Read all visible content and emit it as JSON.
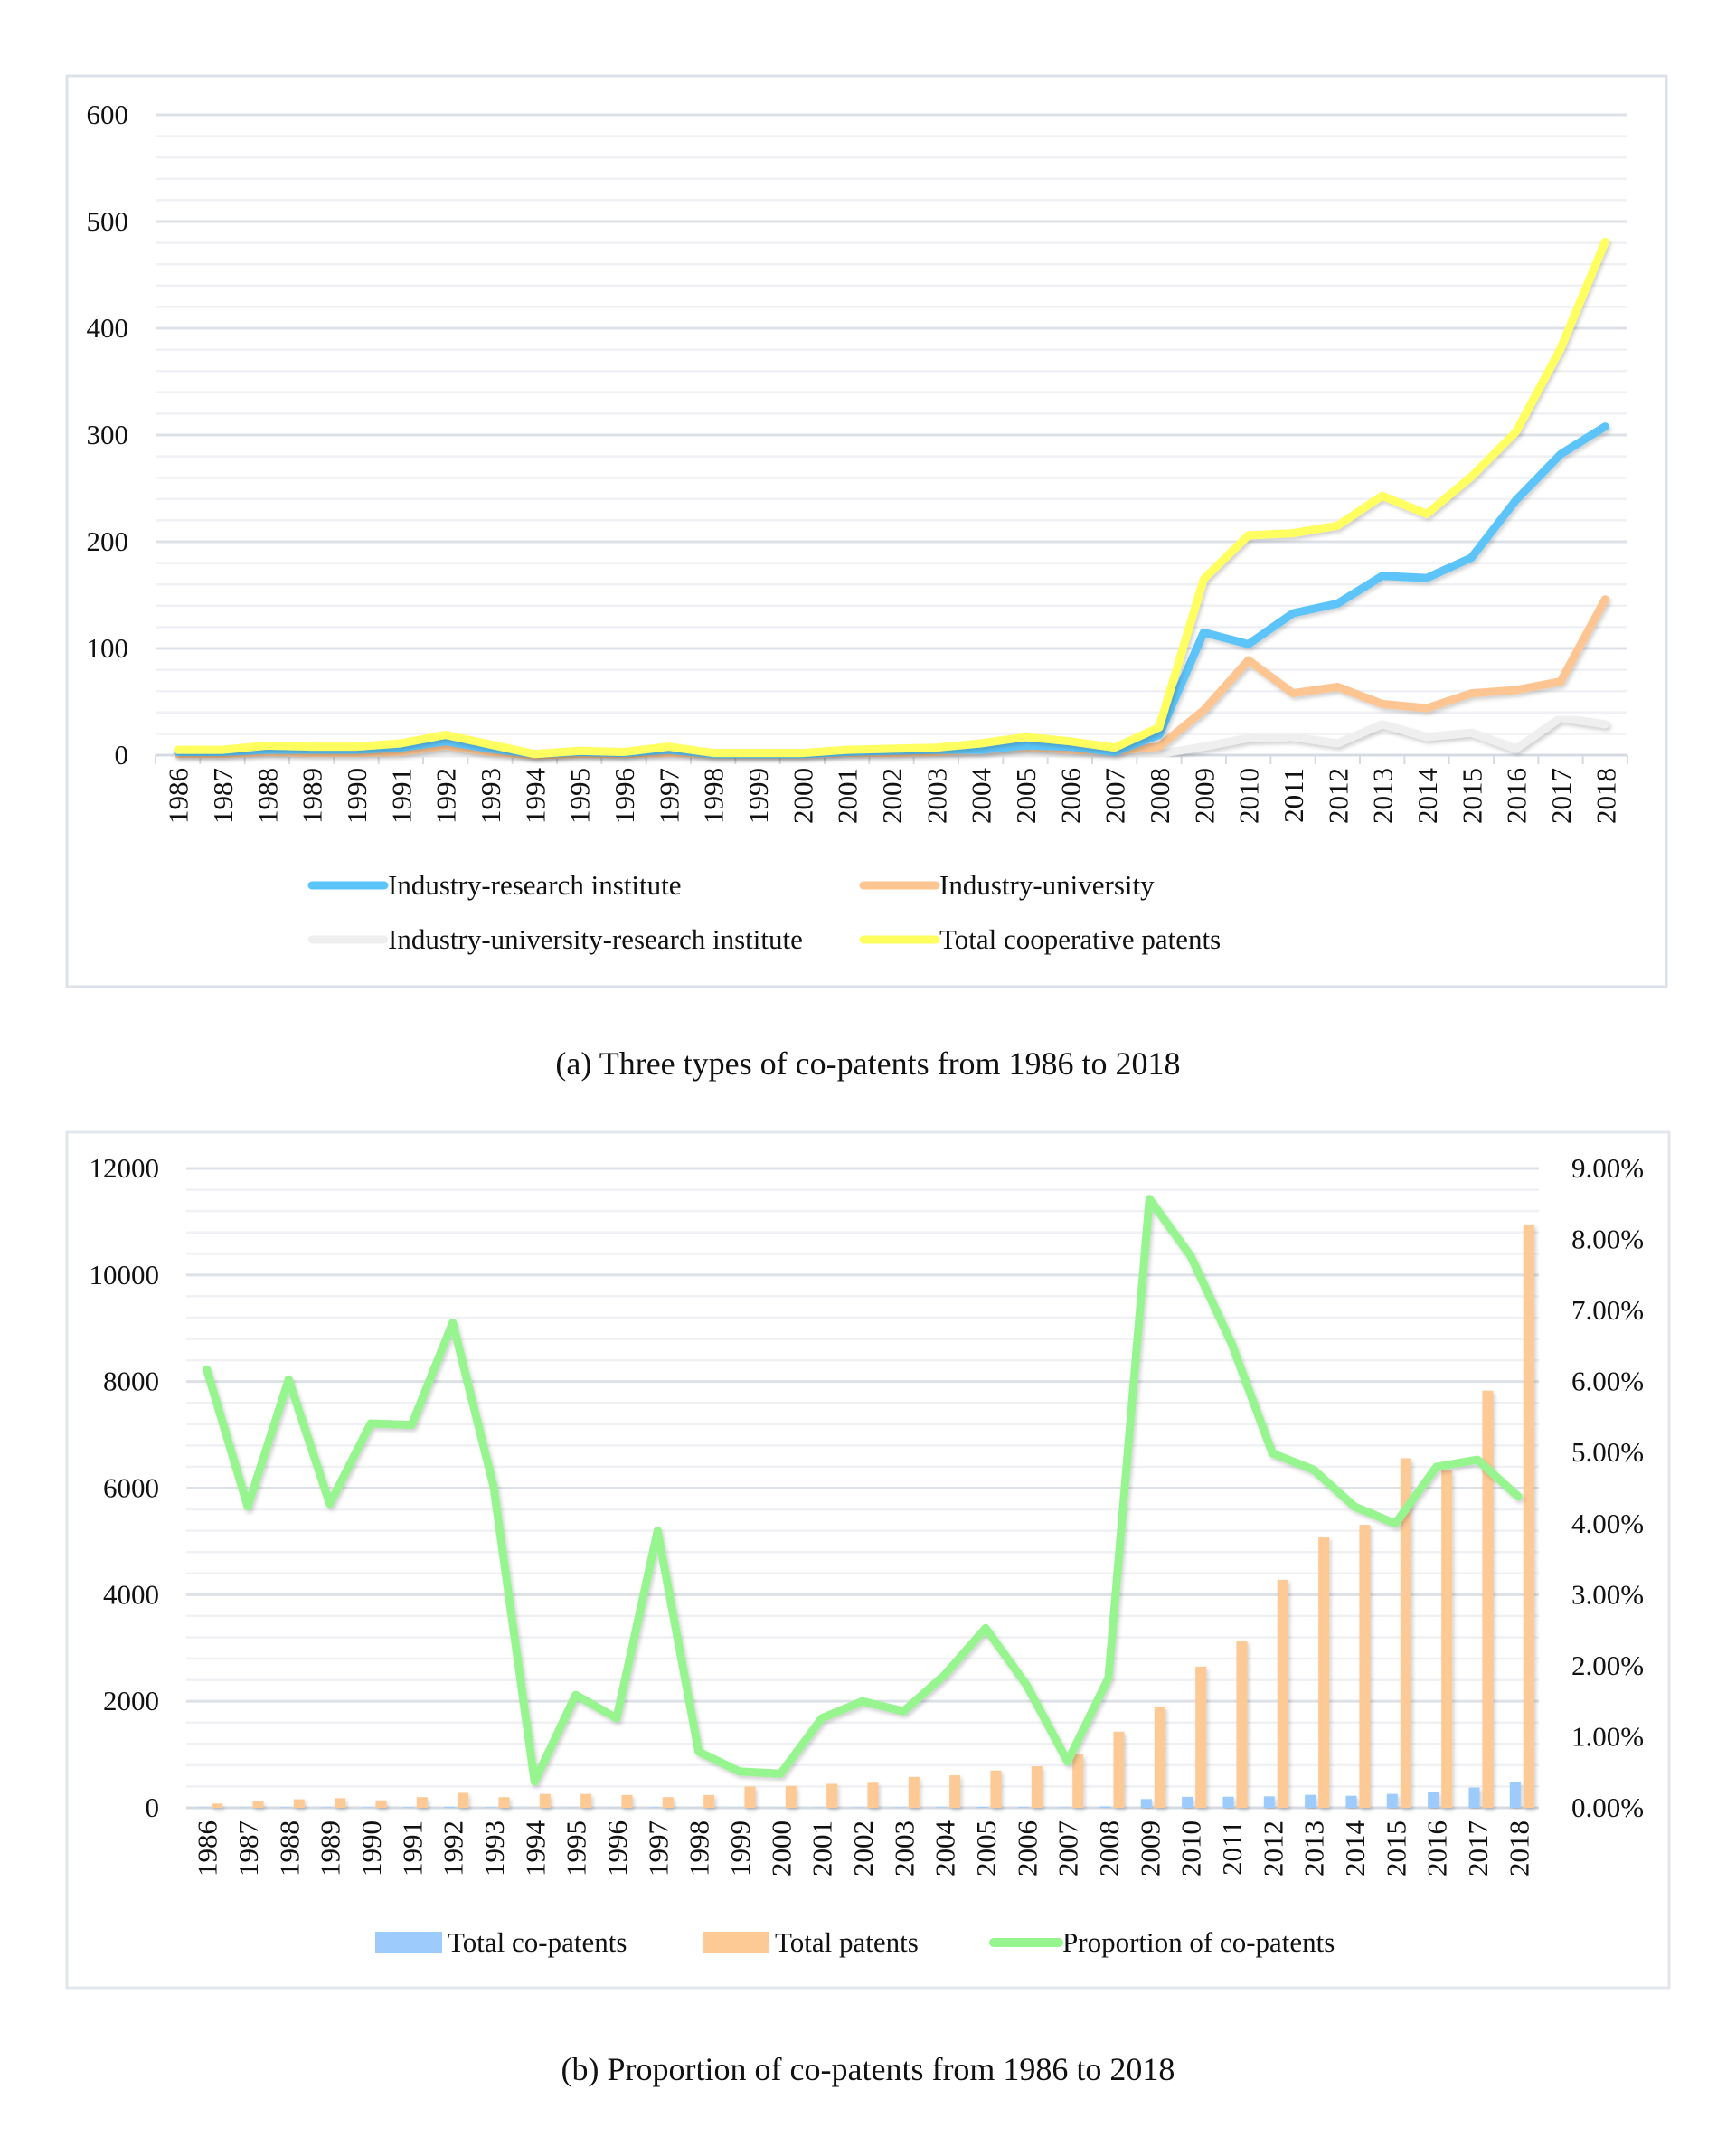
{
  "chart_data": [
    {
      "id": "a",
      "type": "line",
      "title": "",
      "caption": "(a) Three types of co-patents from 1986 to 2018",
      "xlabel": "",
      "ylabel": "",
      "ylim": [
        0,
        600
      ],
      "yticks": [
        0,
        100,
        200,
        300,
        400,
        500,
        600
      ],
      "ytick_labels": [
        "0",
        "100",
        "200",
        "300",
        "400",
        "500",
        "600"
      ],
      "grid": true,
      "legend_position": "bottom",
      "x": [
        "1986",
        "1987",
        "1988",
        "1989",
        "1990",
        "1991",
        "1992",
        "1993",
        "1994",
        "1995",
        "1996",
        "1997",
        "1998",
        "1999",
        "2000",
        "2001",
        "2002",
        "2003",
        "2004",
        "2005",
        "2006",
        "2007",
        "2008",
        "2009",
        "2010",
        "2011",
        "2012",
        "2013",
        "2014",
        "2015",
        "2016",
        "2017",
        "2018"
      ],
      "series": [
        {
          "name": "Industry-research institute",
          "color": "#5bc4f8",
          "values": [
            3,
            3,
            5,
            5,
            5,
            7,
            13,
            6,
            1,
            3,
            2,
            5,
            1,
            1,
            1,
            3,
            4,
            5,
            5,
            9,
            8,
            3,
            19,
            115,
            104,
            133,
            142,
            168,
            166,
            185,
            239,
            282,
            308
          ]
        },
        {
          "name": "Industry-university",
          "color": "#fdc591",
          "values": [
            1,
            1,
            3,
            2,
            2,
            3,
            9,
            3,
            0,
            1,
            1,
            2,
            1,
            1,
            1,
            2,
            2,
            3,
            5,
            8,
            5,
            4,
            8,
            42,
            89,
            58,
            64,
            48,
            44,
            58,
            61,
            69,
            146
          ]
        },
        {
          "name": "Industry-university-research institute",
          "color": "#efefef",
          "values": [
            0,
            0,
            0,
            0,
            0,
            0,
            1,
            0,
            0,
            0,
            0,
            1,
            0,
            0,
            0,
            0,
            0,
            0,
            1,
            2,
            1,
            0,
            1,
            8,
            16,
            17,
            11,
            29,
            17,
            21,
            6,
            35,
            29
          ]
        },
        {
          "name": "Total cooperative patents",
          "color": "#ffff5e",
          "values": [
            5,
            5,
            9,
            8,
            8,
            11,
            19,
            10,
            1,
            4,
            3,
            8,
            2,
            2,
            2,
            5,
            6,
            7,
            11,
            17,
            13,
            7,
            26,
            165,
            206,
            208,
            215,
            243,
            226,
            261,
            303,
            381,
            481
          ]
        }
      ]
    },
    {
      "id": "b",
      "type": "bar",
      "title": "",
      "caption": "(b) Proportion of co-patents from 1986 to 2018",
      "xlabel": "",
      "ylabel": "",
      "ylim": [
        0,
        12000
      ],
      "yticks": [
        0,
        2000,
        4000,
        6000,
        8000,
        10000,
        12000
      ],
      "ytick_labels": [
        "0",
        "2000",
        "4000",
        "6000",
        "8000",
        "10000",
        "12000"
      ],
      "y2lim": [
        0,
        9
      ],
      "y2ticks": [
        0,
        1,
        2,
        3,
        4,
        5,
        6,
        7,
        8,
        9
      ],
      "y2tick_labels": [
        "0.00%",
        "1.00%",
        "2.00%",
        "3.00%",
        "4.00%",
        "5.00%",
        "6.00%",
        "7.00%",
        "8.00%",
        "9.00%"
      ],
      "grid": true,
      "legend_position": "bottom",
      "x": [
        "1986",
        "1987",
        "1988",
        "1989",
        "1990",
        "1991",
        "1992",
        "1993",
        "1994",
        "1995",
        "1996",
        "1997",
        "1998",
        "1999",
        "2000",
        "2001",
        "2002",
        "2003",
        "2004",
        "2005",
        "2006",
        "2007",
        "2008",
        "2009",
        "2010",
        "2011",
        "2012",
        "2013",
        "2014",
        "2015",
        "2016",
        "2017",
        "2018"
      ],
      "series": [
        {
          "name": "Total co-patents",
          "type": "bar",
          "axis": "left",
          "color": "#9dcbfb",
          "values": [
            5,
            5,
            9,
            8,
            8,
            11,
            19,
            10,
            1,
            4,
            3,
            8,
            2,
            2,
            2,
            5,
            6,
            7,
            11,
            17,
            13,
            7,
            26,
            165,
            206,
            208,
            215,
            243,
            226,
            261,
            303,
            381,
            481
          ]
        },
        {
          "name": "Total patents",
          "type": "bar",
          "axis": "left",
          "color": "#fdc994",
          "values": [
            80,
            120,
            160,
            180,
            140,
            200,
            280,
            200,
            260,
            260,
            240,
            200,
            240,
            400,
            410,
            450,
            470,
            580,
            610,
            700,
            780,
            1000,
            1430,
            1900,
            2650,
            3140,
            4280,
            5090,
            5310,
            6560,
            6330,
            7830,
            10950
          ]
        },
        {
          "name": "Proportion of co-patents",
          "type": "line",
          "axis": "right",
          "unit": "%",
          "color": "#97f58f",
          "values": [
            6.17,
            4.24,
            6.03,
            4.28,
            5.41,
            5.39,
            6.83,
            4.52,
            0.37,
            1.59,
            1.26,
            3.9,
            0.79,
            0.51,
            0.48,
            1.26,
            1.5,
            1.36,
            1.87,
            2.53,
            1.73,
            0.65,
            1.83,
            8.57,
            7.77,
            6.54,
            4.99,
            4.76,
            4.24,
            4.0,
            4.8,
            4.9,
            4.38
          ]
        }
      ]
    }
  ]
}
